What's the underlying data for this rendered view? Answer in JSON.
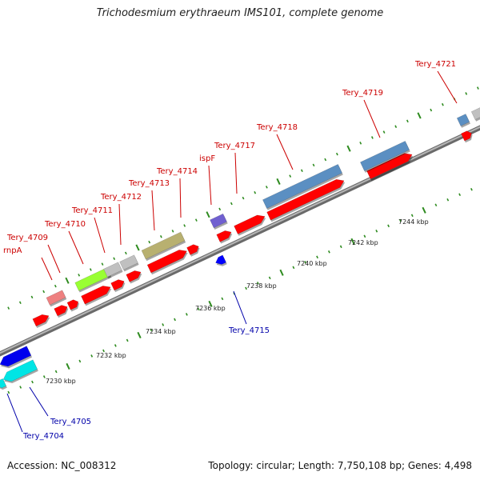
{
  "title": "Trichodesmium erythraeum IMS101, complete genome",
  "footer": {
    "accession": "Accession: NC_008312",
    "topology": "Topology: circular; Length: 7,750,108 bp; Genes: 4,498"
  },
  "colors": {
    "backbone": "#8f8f8f",
    "cds_forward": "#ff0000",
    "cds_reverse": "#0000ff",
    "ruler_tick": "#2e8b1f",
    "label_forward": "#cc0000",
    "label_reverse": "#0000aa"
  },
  "scale": {
    "unit": "kbp",
    "kbp_labels": [
      "7230 kbp",
      "7232 kbp",
      "7234 kbp",
      "7236 kbp",
      "7238 kbp",
      "7240 kbp",
      "7242 kbp",
      "7244 kbp"
    ]
  },
  "gene_labels": {
    "forward": [
      "rnpA",
      "Tery_4709",
      "Tery_4710",
      "Tery_4711",
      "Tery_4712",
      "Tery_4713",
      "Tery_4714",
      "ispF",
      "Tery_4717",
      "Tery_4718",
      "Tery_4719",
      "Tery_4721"
    ],
    "reverse": [
      "Tery_4704",
      "Tery_4705",
      "Tery_4715"
    ]
  },
  "feature_colors": {
    "rnpA": "#ee8080",
    "Tery_4711": "#99ff33",
    "Tery_4712": "#c0c0c0",
    "Tery_4713": "#b8b070",
    "ispF": "#7060d0",
    "Tery_4718": "#5b8fc2",
    "Tery_4719": "#5b8fc2",
    "Tery_4704": "#00e5e5",
    "Tery_4705": "#0000ee"
  }
}
